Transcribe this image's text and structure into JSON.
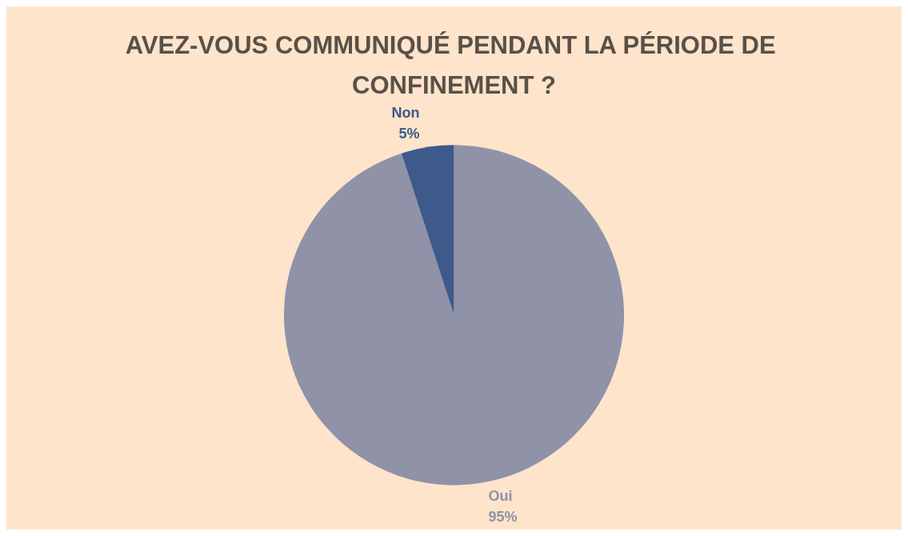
{
  "chart_data": {
    "type": "pie",
    "title": "AVEZ-VOUS COMMUNIQUÉ PENDANT LA PÉRIODE DE CONFINEMENT ?",
    "categories": [
      "Oui",
      "Non"
    ],
    "values": [
      95,
      5
    ],
    "colors": [
      "#9092a8",
      "#3d5a8a"
    ],
    "value_labels": [
      "95%",
      "5%"
    ],
    "legend": false
  }
}
